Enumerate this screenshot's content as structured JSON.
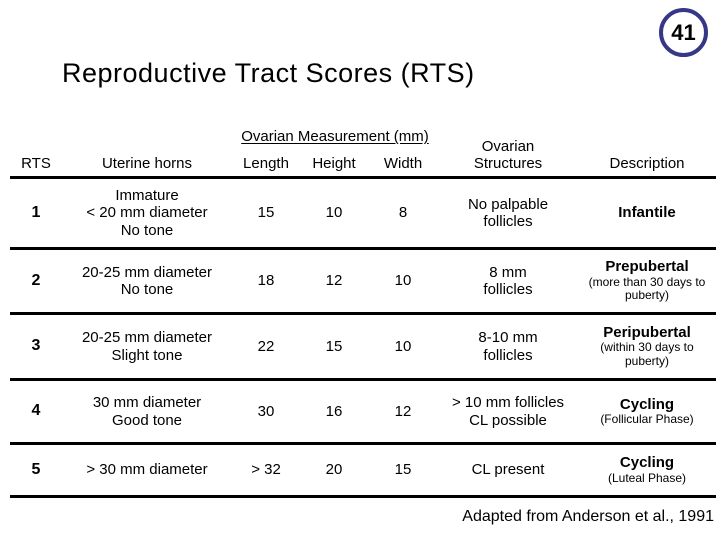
{
  "page": {
    "number": "41",
    "title": "Reproductive Tract Scores (RTS)",
    "footer": "Adapted from Anderson et al., 1991"
  },
  "colors": {
    "badge_border": "#373787",
    "text": "#000000",
    "rule_lines": "#000000"
  },
  "table": {
    "headers": {
      "rts": "RTS",
      "uterine_horns": "Uterine horns",
      "ovarian_measurement_group": "Ovarian Measurement (mm)",
      "length": "Length",
      "height": "Height",
      "width": "Width",
      "ovarian_structures": "Ovarian Structures",
      "description": "Description"
    },
    "rows": [
      {
        "rts": "1",
        "uterine_horns": "Immature\n< 20 mm diameter\nNo tone",
        "length": "15",
        "height": "10",
        "width": "8",
        "ovarian_structures": "No palpable\nfollicles",
        "description": "Infantile",
        "description_detail": ""
      },
      {
        "rts": "2",
        "uterine_horns": "20-25 mm diameter\nNo tone",
        "length": "18",
        "height": "12",
        "width": "10",
        "ovarian_structures": "8 mm\nfollicles",
        "description": "Prepubertal",
        "description_detail": "(more than 30 days to puberty)"
      },
      {
        "rts": "3",
        "uterine_horns": "20-25 mm diameter\nSlight tone",
        "length": "22",
        "height": "15",
        "width": "10",
        "ovarian_structures": "8-10 mm\nfollicles",
        "description": "Peripubertal",
        "description_detail": "(within 30 days to puberty)"
      },
      {
        "rts": "4",
        "uterine_horns": "30 mm diameter\nGood tone",
        "length": "30",
        "height": "16",
        "width": "12",
        "ovarian_structures": "> 10 mm follicles\nCL possible",
        "description": "Cycling",
        "description_detail": "(Follicular Phase)"
      },
      {
        "rts": "5",
        "uterine_horns": "> 30 mm diameter",
        "length": "> 32",
        "height": "20",
        "width": "15",
        "ovarian_structures": "CL present",
        "description": "Cycling",
        "description_detail": "(Luteal Phase)"
      }
    ]
  }
}
